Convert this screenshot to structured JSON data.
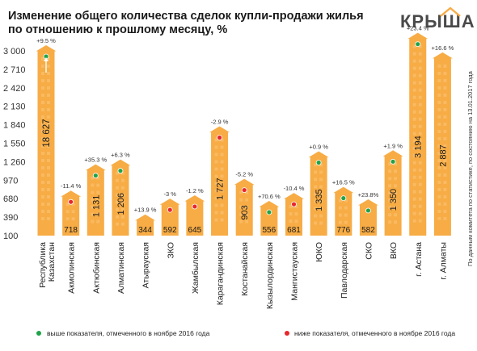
{
  "chart_data": {
    "type": "bar",
    "title_lines": [
      "Изменение общего количества сделок купли-продажи жилья",
      "по отношению к прошлому месяцу, %"
    ],
    "logo": "КРЫША",
    "side_note": "По данным комитета по статистике, по состоянию на 13.01.2017 года",
    "y_ticks": [
      "3 000",
      "2 710",
      "2 420",
      "2 130",
      "1 840",
      "1 550",
      "1 260",
      "970",
      "680",
      "390",
      "100"
    ],
    "categories": [
      "Республика Казахстан",
      "Акмолинская",
      "Актюбинская",
      "Алматинская",
      "Атырауская",
      "ЗКО",
      "Жамбылская",
      "Карагандинская",
      "Костанайская",
      "Кызылординская",
      "Мангистауская",
      "ЮКО",
      "Павлодарская",
      "СКО",
      "ВКО",
      "г. Астана",
      "г. Алматы"
    ],
    "value_labels": [
      "18 627",
      "718",
      "1 131",
      "1 206",
      "344",
      "592",
      "645",
      "1 727",
      "903",
      "556",
      "681",
      "1 335",
      "776",
      "582",
      "1 350",
      "3 194",
      "2 887"
    ],
    "values": [
      18627,
      718,
      1131,
      1206,
      344,
      592,
      645,
      1727,
      903,
      556,
      681,
      1335,
      776,
      582,
      1350,
      3194,
      2887
    ],
    "bar_display_values": [
      3000,
      718,
      1131,
      1206,
      344,
      592,
      645,
      1727,
      903,
      556,
      681,
      1335,
      776,
      582,
      1350,
      3194,
      2887
    ],
    "pct_labels": [
      "+9.5 %",
      "-11.4 %",
      "+35.3 %",
      "+6.3 %",
      "+13.9 %",
      "-3 %",
      "-1.2 %",
      "-2.9 %",
      "-5.2 %",
      "+70.6 %",
      "-10.4 %",
      "+0.9 %",
      "+16.5 %",
      "+23.8%",
      "+1.9 %",
      "+23.4 %",
      "+16.6 %"
    ],
    "marker": [
      "green",
      "red",
      "green",
      "green",
      "none",
      "red",
      "red",
      "red",
      "red",
      "green",
      "red",
      "green",
      "green",
      "green",
      "green",
      "green",
      "none"
    ],
    "ylim": [
      100,
      3000
    ],
    "legend": {
      "above": "выше показателя, отмеченного в ноябре 2016 года",
      "below": "ниже показателя, отмеченного в ноябре 2016 года",
      "position": "bottom"
    },
    "colors": {
      "bar": "#f7ac45",
      "bar_window": "#fbc77a",
      "green": "#1fa34a",
      "red": "#e8262d"
    }
  }
}
